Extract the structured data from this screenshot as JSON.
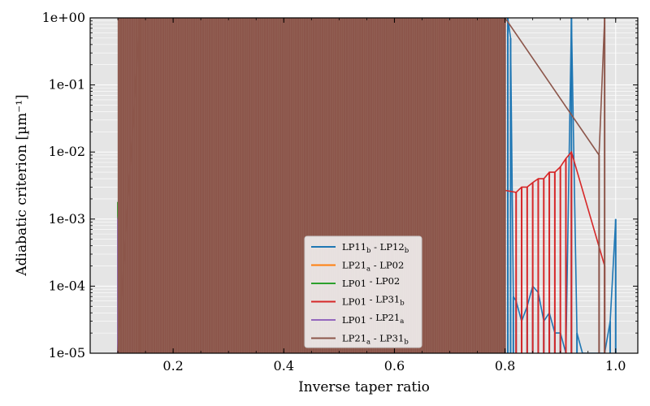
{
  "chart_data": {
    "type": "line",
    "xlabel": "Inverse taper ratio",
    "ylabel": "Adiabatic criterion [µm⁻¹]",
    "xlim": [
      0.05,
      1.04
    ],
    "ylim": [
      1e-05,
      1.0
    ],
    "yscale": "log",
    "grid": true,
    "background": "#e5e5e5",
    "legend_position": "lower-center",
    "x_ticks": [
      {
        "value": 0.2,
        "label": "0.2"
      },
      {
        "value": 0.4,
        "label": "0.4"
      },
      {
        "value": 0.6,
        "label": "0.6"
      },
      {
        "value": 0.8,
        "label": "0.8"
      },
      {
        "value": 1.0,
        "label": "1.0"
      }
    ],
    "y_ticks": [
      {
        "value": 1e-05,
        "label": "1e-05"
      },
      {
        "value": 0.0001,
        "label": "1e-04"
      },
      {
        "value": 0.001,
        "label": "1e-03"
      },
      {
        "value": 0.01,
        "label": "1e-02"
      },
      {
        "value": 0.1,
        "label": "1e-01"
      },
      {
        "value": 1.0,
        "label": "1e+00"
      }
    ],
    "series": [
      {
        "name": "LP11_b - LP12_b",
        "label": {
          "a": "LP11",
          "a_sub": "b",
          "b": "LP12",
          "b_sub": "b"
        },
        "color": "#1f77b4",
        "x": [
          0.1,
          0.105,
          0.11,
          0.115,
          0.12,
          0.125,
          0.13,
          0.2,
          0.205,
          0.21,
          0.215,
          0.22,
          0.225,
          0.8,
          0.805,
          0.81,
          0.815,
          0.82,
          0.83,
          0.84,
          0.85,
          0.86,
          0.87,
          0.88,
          0.89,
          0.9,
          0.91,
          0.92,
          0.93,
          0.94,
          0.95,
          0.96,
          0.97,
          0.98,
          0.99,
          1.0
        ],
        "y": [
          0.0008,
          0.0006,
          0.0001,
          0.0003,
          7e-05,
          0.0008,
          0.006,
          0.01,
          0.01,
          0.015,
          0.015,
          0.018,
          0.018,
          1.0,
          1.0,
          0.5,
          7e-05,
          6e-05,
          3e-05,
          5e-05,
          0.0001,
          8e-05,
          3e-05,
          4e-05,
          2e-05,
          2e-05,
          1e-05,
          1.0,
          2e-05,
          1e-05,
          1e-05,
          1e-05,
          1e-05,
          1e-05,
          3e-05,
          0.001
        ]
      },
      {
        "name": "LP21_a - LP02",
        "label": {
          "a": "LP21",
          "a_sub": "a",
          "b": "LP02",
          "b_sub": ""
        },
        "color": "#ff7f0e",
        "x": [
          0.1,
          0.105,
          0.11,
          0.115,
          0.12,
          0.125,
          0.13,
          0.135,
          0.14
        ],
        "y": [
          9e-05,
          8e-05,
          0.0001,
          0.00015,
          0.0002,
          0.00028,
          0.0004,
          0.0006,
          0.0008
        ]
      },
      {
        "name": "LP01 - LP02",
        "label": {
          "a": "LP01",
          "a_sub": "",
          "b": "LP02",
          "b_sub": ""
        },
        "color": "#2ca02c",
        "x": [
          0.1,
          0.102,
          0.104,
          0.106
        ],
        "y": [
          0.0018,
          0.0015,
          0.0012,
          0.001
        ]
      },
      {
        "name": "LP01 - LP31_b",
        "label": {
          "a": "LP01",
          "a_sub": "",
          "b": "LP31",
          "b_sub": "b"
        },
        "color": "#d62728",
        "x": [
          0.12,
          0.125,
          0.2,
          0.205,
          0.21,
          0.215,
          0.82,
          0.83,
          0.84,
          0.85,
          0.86,
          0.87,
          0.88,
          0.89,
          0.9,
          0.91,
          0.92,
          0.98
        ],
        "y": [
          0.01,
          0.002,
          0.025,
          0.03,
          0.03,
          0.02,
          0.0025,
          0.003,
          0.003,
          0.0035,
          0.004,
          0.004,
          0.005,
          0.005,
          0.006,
          0.008,
          0.01,
          0.0002
        ]
      },
      {
        "name": "LP01 - LP21_a",
        "label": {
          "a": "LP01",
          "a_sub": "",
          "b": "LP21",
          "b_sub": "a"
        },
        "color": "#9467bd",
        "x": [
          0.1,
          0.105,
          0.11,
          0.115,
          0.12,
          0.125,
          0.13
        ],
        "y": [
          0.001,
          0.0016,
          0.002,
          0.004,
          0.008,
          0.015,
          0.028
        ]
      },
      {
        "name": "LP21_a - LP31_b",
        "label": {
          "a": "LP21",
          "a_sub": "a",
          "b": "LP31",
          "b_sub": "b"
        },
        "color": "#8c564b",
        "band": {
          "x_from": 0.1,
          "x_to": 0.8,
          "y_from": 1e-05,
          "y_to": 1.0
        },
        "x": [
          0.1,
          0.14,
          0.8,
          0.97,
          0.98
        ],
        "y": [
          1e-05,
          1.0,
          1.0,
          0.009,
          1.0
        ]
      }
    ]
  }
}
